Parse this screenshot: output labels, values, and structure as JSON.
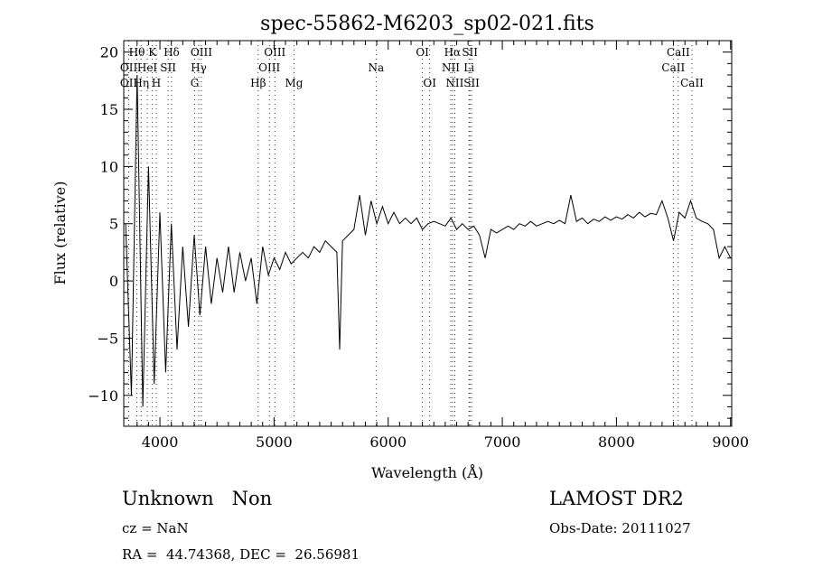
{
  "chart_data": {
    "type": "line",
    "title": "spec-55862-M6203_sp02-021.fits",
    "xlabel": "Wavelength (Å)",
    "ylabel": "Flux (relative)",
    "xlim": [
      3683,
      9010
    ],
    "ylim": [
      -12.7,
      21
    ],
    "xticks": [
      4000,
      5000,
      6000,
      7000,
      8000,
      9000
    ],
    "yticks": [
      -10,
      -5,
      0,
      5,
      10,
      15,
      20
    ],
    "grid": false,
    "series": [
      {
        "name": "flux",
        "x": [
          3700,
          3750,
          3800,
          3850,
          3900,
          3950,
          4000,
          4050,
          4100,
          4150,
          4200,
          4250,
          4300,
          4350,
          4400,
          4450,
          4500,
          4550,
          4600,
          4650,
          4700,
          4750,
          4800,
          4850,
          4900,
          4950,
          5000,
          5050,
          5100,
          5150,
          5200,
          5250,
          5300,
          5350,
          5400,
          5450,
          5500,
          5550,
          5575,
          5600,
          5650,
          5700,
          5750,
          5800,
          5850,
          5900,
          5950,
          6000,
          6050,
          6100,
          6150,
          6200,
          6250,
          6300,
          6350,
          6400,
          6450,
          6500,
          6550,
          6600,
          6650,
          6700,
          6750,
          6800,
          6850,
          6900,
          6950,
          7000,
          7050,
          7100,
          7150,
          7200,
          7250,
          7300,
          7350,
          7400,
          7450,
          7500,
          7550,
          7600,
          7650,
          7700,
          7750,
          7800,
          7850,
          7900,
          7950,
          8000,
          8050,
          8100,
          8150,
          8200,
          8250,
          8300,
          8350,
          8400,
          8450,
          8500,
          8550,
          8600,
          8650,
          8700,
          8750,
          8800,
          8850,
          8900,
          8950,
          9000
        ],
        "y": [
          5,
          -10,
          18,
          -11,
          10,
          -9,
          6,
          -8,
          5,
          -6,
          3,
          -4,
          4,
          -3,
          3,
          -2,
          2,
          -1,
          3,
          -1,
          2.5,
          0,
          2,
          -2,
          3,
          0.5,
          2,
          1,
          2.5,
          1.5,
          2,
          2.5,
          2,
          3,
          2.5,
          3.5,
          3,
          2.5,
          -6,
          3.5,
          4,
          4.5,
          7.5,
          4,
          7,
          5,
          6.5,
          5,
          6,
          5,
          5.5,
          5,
          5.5,
          4.5,
          5,
          5.2,
          5,
          4.8,
          5.5,
          4.5,
          5,
          4.5,
          4.8,
          4,
          2,
          4.5,
          4.2,
          4.5,
          4.8,
          4.5,
          5,
          4.8,
          5.2,
          4.8,
          5,
          5.2,
          5,
          5.3,
          5,
          7.5,
          5.2,
          5.5,
          5,
          5.4,
          5.2,
          5.6,
          5.3,
          5.6,
          5.4,
          5.8,
          5.5,
          6,
          5.6,
          5.9,
          5.8,
          7,
          5.5,
          3.5,
          6,
          5.5,
          7,
          5.5,
          5.2,
          5,
          4.5,
          2,
          3,
          2
        ]
      }
    ],
    "annotations": [
      {
        "label": "Hθ",
        "wave": 3798,
        "row": 0
      },
      {
        "label": "K",
        "wave": 3934,
        "row": 0
      },
      {
        "label": "Hδ",
        "wave": 4102,
        "row": 0
      },
      {
        "label": "OIII",
        "wave": 4363,
        "row": 0
      },
      {
        "label": "OIII",
        "wave": 5007,
        "row": 0
      },
      {
        "label": "OI",
        "wave": 6300,
        "row": 0
      },
      {
        "label": "Hα",
        "wave": 6563,
        "row": 0
      },
      {
        "label": "SII",
        "wave": 6716,
        "row": 0
      },
      {
        "label": "CaII",
        "wave": 8542,
        "row": 0
      },
      {
        "label": "OII",
        "wave": 3727,
        "row": 1
      },
      {
        "label": "HeI",
        "wave": 3889,
        "row": 1
      },
      {
        "label": "SII",
        "wave": 4072,
        "row": 1
      },
      {
        "label": "Hγ",
        "wave": 4340,
        "row": 1
      },
      {
        "label": "OIII",
        "wave": 4959,
        "row": 1
      },
      {
        "label": "Na",
        "wave": 5894,
        "row": 1
      },
      {
        "label": "NII",
        "wave": 6548,
        "row": 1
      },
      {
        "label": "Li",
        "wave": 6708,
        "row": 1
      },
      {
        "label": "CaII",
        "wave": 8498,
        "row": 1
      },
      {
        "label": "OII",
        "wave": 3727,
        "row": 2
      },
      {
        "label": "Hη",
        "wave": 3835,
        "row": 2
      },
      {
        "label": "H",
        "wave": 3968,
        "row": 2
      },
      {
        "label": "G",
        "wave": 4305,
        "row": 2
      },
      {
        "label": "Hβ",
        "wave": 4861,
        "row": 2
      },
      {
        "label": "Mg",
        "wave": 5175,
        "row": 2
      },
      {
        "label": "OI",
        "wave": 6364,
        "row": 2
      },
      {
        "label": "NII",
        "wave": 6583,
        "row": 2
      },
      {
        "label": "SII",
        "wave": 6731,
        "row": 2
      },
      {
        "label": "CaII",
        "wave": 8662,
        "row": 2
      }
    ]
  },
  "info": {
    "class": "Unknown",
    "subclass": "Non",
    "cz": "cz = NaN",
    "coords": "RA =  44.74368, DEC =  26.56981",
    "survey": "LAMOST DR2",
    "obs_date": "Obs-Date: 20111027"
  }
}
